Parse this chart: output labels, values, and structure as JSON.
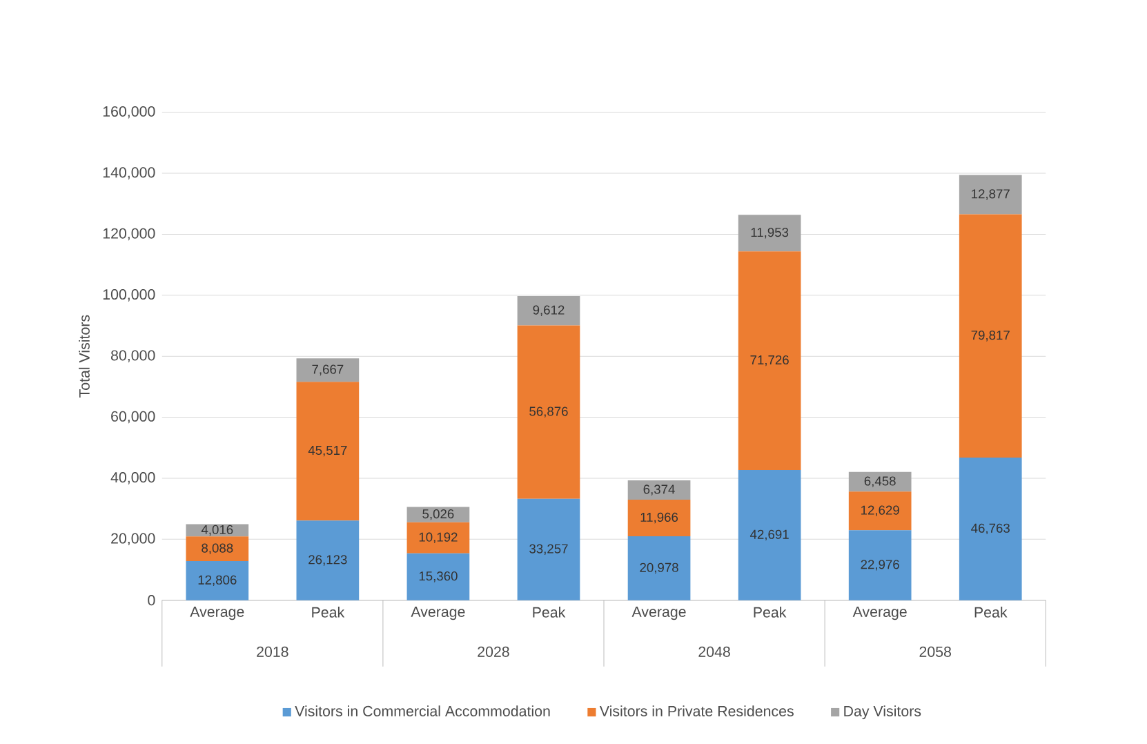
{
  "chart_data": {
    "type": "bar",
    "stacked": true,
    "categories": [
      "Average",
      "Peak",
      "Average",
      "Peak",
      "Average",
      "Peak",
      "Average",
      "Peak"
    ],
    "annotations": [
      "2018",
      "2028",
      "2048",
      "2058"
    ],
    "ylabel": "Total Visitors",
    "series": [
      {
        "name": "Visitors in Commercial Accommodation",
        "color": "#5b9bd5",
        "values": [
          12806,
          26123,
          15360,
          33257,
          20978,
          42691,
          22976,
          46763
        ],
        "value_labels": [
          "12,806",
          "26,123",
          "15,360",
          "33,257",
          "20,978",
          "42,691",
          "22,976",
          "46,763"
        ]
      },
      {
        "name": "Visitors in Private Residences",
        "color": "#ed7d31",
        "values": [
          8088,
          45517,
          10192,
          56876,
          11966,
          71726,
          12629,
          79817
        ],
        "value_labels": [
          "8,088",
          "45,517",
          "10,192",
          "56,876",
          "11,966",
          "71,726",
          "12,629",
          "79,817"
        ]
      },
      {
        "name": "Day Visitors",
        "color": "#a5a5a5",
        "values": [
          4016,
          7667,
          5026,
          9612,
          6374,
          11953,
          6458,
          12877
        ],
        "value_labels": [
          "4,016",
          "7,667",
          "5,026",
          "9,612",
          "6,374",
          "11,953",
          "6,458",
          "12,877"
        ]
      }
    ],
    "ylim": [
      0,
      160000
    ],
    "yticks": [
      0,
      {
        "value": 20000,
        "label": "20,000"
      },
      {
        "value": 40000,
        "label": "40,000"
      },
      {
        "value": 60000,
        "label": "60,000"
      },
      {
        "value": 80000,
        "label": "80,000"
      },
      {
        "value": 100000,
        "label": "100,000"
      },
      {
        "value": 120000,
        "label": "120,000"
      },
      {
        "value": 140000,
        "label": "140,000"
      },
      {
        "value": 160000,
        "label": "160,000"
      }
    ],
    "grid": "y",
    "legend": "bottom"
  }
}
